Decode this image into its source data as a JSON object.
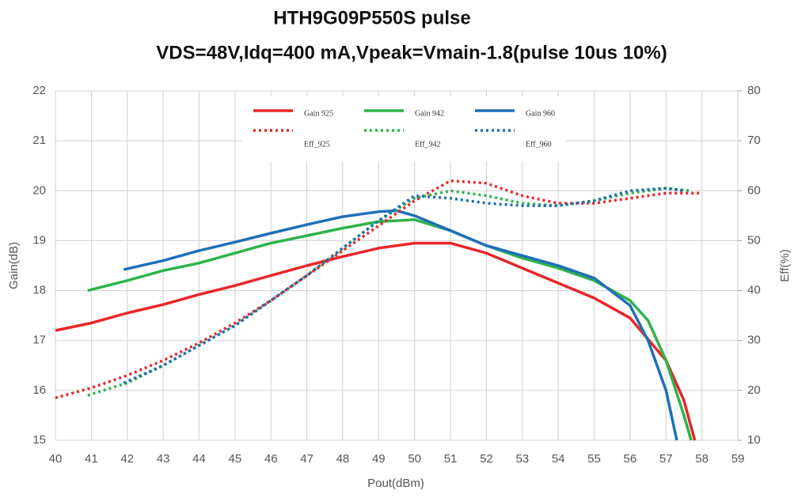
{
  "chart_data": {
    "type": "line",
    "title": "HTH9G09P550S pulse",
    "subtitle": "VDS=48V,Idq=400 mA,Vpeak=Vmain-1.8(pulse 10us 10%)",
    "x_label": "Pout(dBm)",
    "y_label": "Gain(dB)",
    "y2_label": "Eff(%)",
    "xlim": [
      40,
      59
    ],
    "xticks": [
      40,
      41,
      42,
      43,
      44,
      45,
      46,
      47,
      48,
      49,
      50,
      51,
      52,
      53,
      54,
      55,
      56,
      57,
      58,
      59
    ],
    "ylim": [
      15,
      22
    ],
    "yticks": [
      15,
      16,
      17,
      18,
      19,
      20,
      21,
      22
    ],
    "y2lim": [
      10,
      80
    ],
    "y2ticks": [
      10,
      20,
      30,
      40,
      50,
      60,
      70,
      80
    ],
    "grid": true,
    "legend": "top",
    "series": [
      {
        "name": "Gain 925",
        "color": "#e8262a",
        "style": "solid",
        "x": [
          40,
          41,
          42,
          43,
          44,
          45,
          46,
          47,
          48,
          49,
          50,
          51,
          52,
          53,
          54,
          55,
          56,
          57,
          57.5,
          57.8
        ],
        "values": [
          17.2,
          17.35,
          17.55,
          17.72,
          17.92,
          18.1,
          18.3,
          18.5,
          18.68,
          18.85,
          18.95,
          18.95,
          18.75,
          18.45,
          18.15,
          17.85,
          17.45,
          16.6,
          15.8,
          15.0
        ]
      },
      {
        "name": "Gain 942",
        "color": "#2db34a",
        "style": "solid",
        "x": [
          40.9,
          42,
          43,
          44,
          45,
          46,
          47,
          48,
          49,
          50,
          51,
          52,
          53,
          54,
          55,
          56,
          56.5,
          57,
          57.5,
          57.7
        ],
        "values": [
          18.0,
          18.2,
          18.4,
          18.55,
          18.75,
          18.95,
          19.1,
          19.25,
          19.38,
          19.42,
          19.2,
          18.9,
          18.65,
          18.45,
          18.2,
          17.8,
          17.4,
          16.6,
          15.5,
          15.0
        ]
      },
      {
        "name": "Gain 960",
        "color": "#1f6fb8",
        "style": "solid",
        "x": [
          41.9,
          43,
          44,
          45,
          46,
          47,
          48,
          49,
          49.5,
          50,
          51,
          52,
          53,
          54,
          55,
          56,
          56.5,
          57,
          57.3
        ],
        "values": [
          18.42,
          18.6,
          18.8,
          18.97,
          19.15,
          19.32,
          19.48,
          19.58,
          19.6,
          19.5,
          19.2,
          18.9,
          18.7,
          18.5,
          18.25,
          17.7,
          17.0,
          16.0,
          15.0
        ]
      },
      {
        "name": "Eff_925",
        "color": "#e8262a",
        "style": "dotted",
        "axis": "y2",
        "x": [
          40,
          41,
          42,
          43,
          44,
          45,
          46,
          47,
          48,
          49,
          50,
          51,
          52,
          53,
          54,
          55,
          56,
          57,
          58
        ],
        "values": [
          18.5,
          20.5,
          23,
          26,
          29.5,
          33.5,
          38,
          43,
          48,
          53,
          58,
          62,
          61.5,
          59,
          57.5,
          57.5,
          58.5,
          59.5,
          59.5
        ]
      },
      {
        "name": "Eff_942",
        "color": "#2db34a",
        "style": "dotted",
        "axis": "y2",
        "x": [
          40.9,
          42,
          43,
          44,
          45,
          46,
          47,
          48,
          49,
          50,
          51,
          52,
          53,
          54,
          55,
          56,
          57,
          57.7
        ],
        "values": [
          19,
          21.5,
          25,
          29,
          33,
          38,
          43,
          48.5,
          54,
          58.5,
          60,
          59,
          57.5,
          57,
          58,
          59.5,
          60.5,
          60
        ]
      },
      {
        "name": "Eff_960",
        "color": "#1f6fb8",
        "style": "dotted",
        "axis": "y2",
        "x": [
          41.9,
          43,
          44,
          45,
          46,
          47,
          48,
          49,
          50,
          51,
          52,
          53,
          54,
          55,
          56,
          57,
          57.5
        ],
        "values": [
          21.5,
          25,
          29,
          33,
          38,
          43,
          48.5,
          54,
          59,
          58.5,
          57.5,
          57,
          57,
          58,
          60,
          60.5,
          60
        ]
      }
    ]
  }
}
